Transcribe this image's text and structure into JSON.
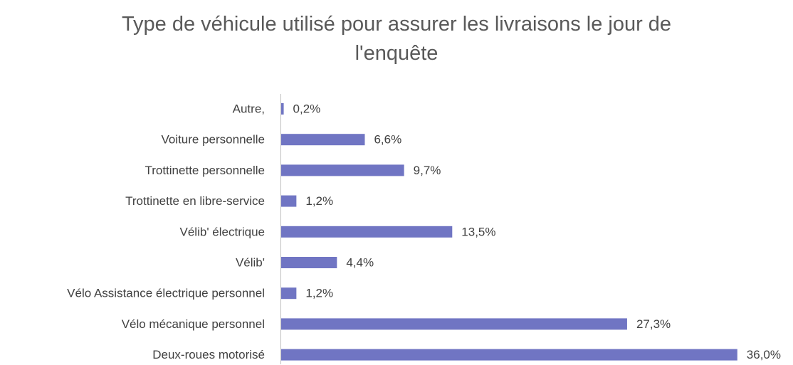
{
  "chart_data": {
    "type": "bar",
    "orientation": "horizontal",
    "title": "Type de véhicule utilisé pour assurer les livraisons le jour de l'enquête",
    "categories": [
      "Autre,",
      "Voiture personnelle",
      "Trottinette personnelle",
      "Trottinette en libre-service",
      "Vélib' électrique",
      "Vélib'",
      "Vélo Assistance électrique personnel",
      "Vélo mécanique personnel",
      "Deux-roues motorisé"
    ],
    "values": [
      0.2,
      6.6,
      9.7,
      1.2,
      13.5,
      4.4,
      1.2,
      27.3,
      36.0
    ],
    "value_labels": [
      "0,2%",
      "6,6%",
      "9,7%",
      "1,2%",
      "13,5%",
      "4,4%",
      "1,2%",
      "27,3%",
      "36,0%"
    ],
    "color": "#7075c3"
  }
}
